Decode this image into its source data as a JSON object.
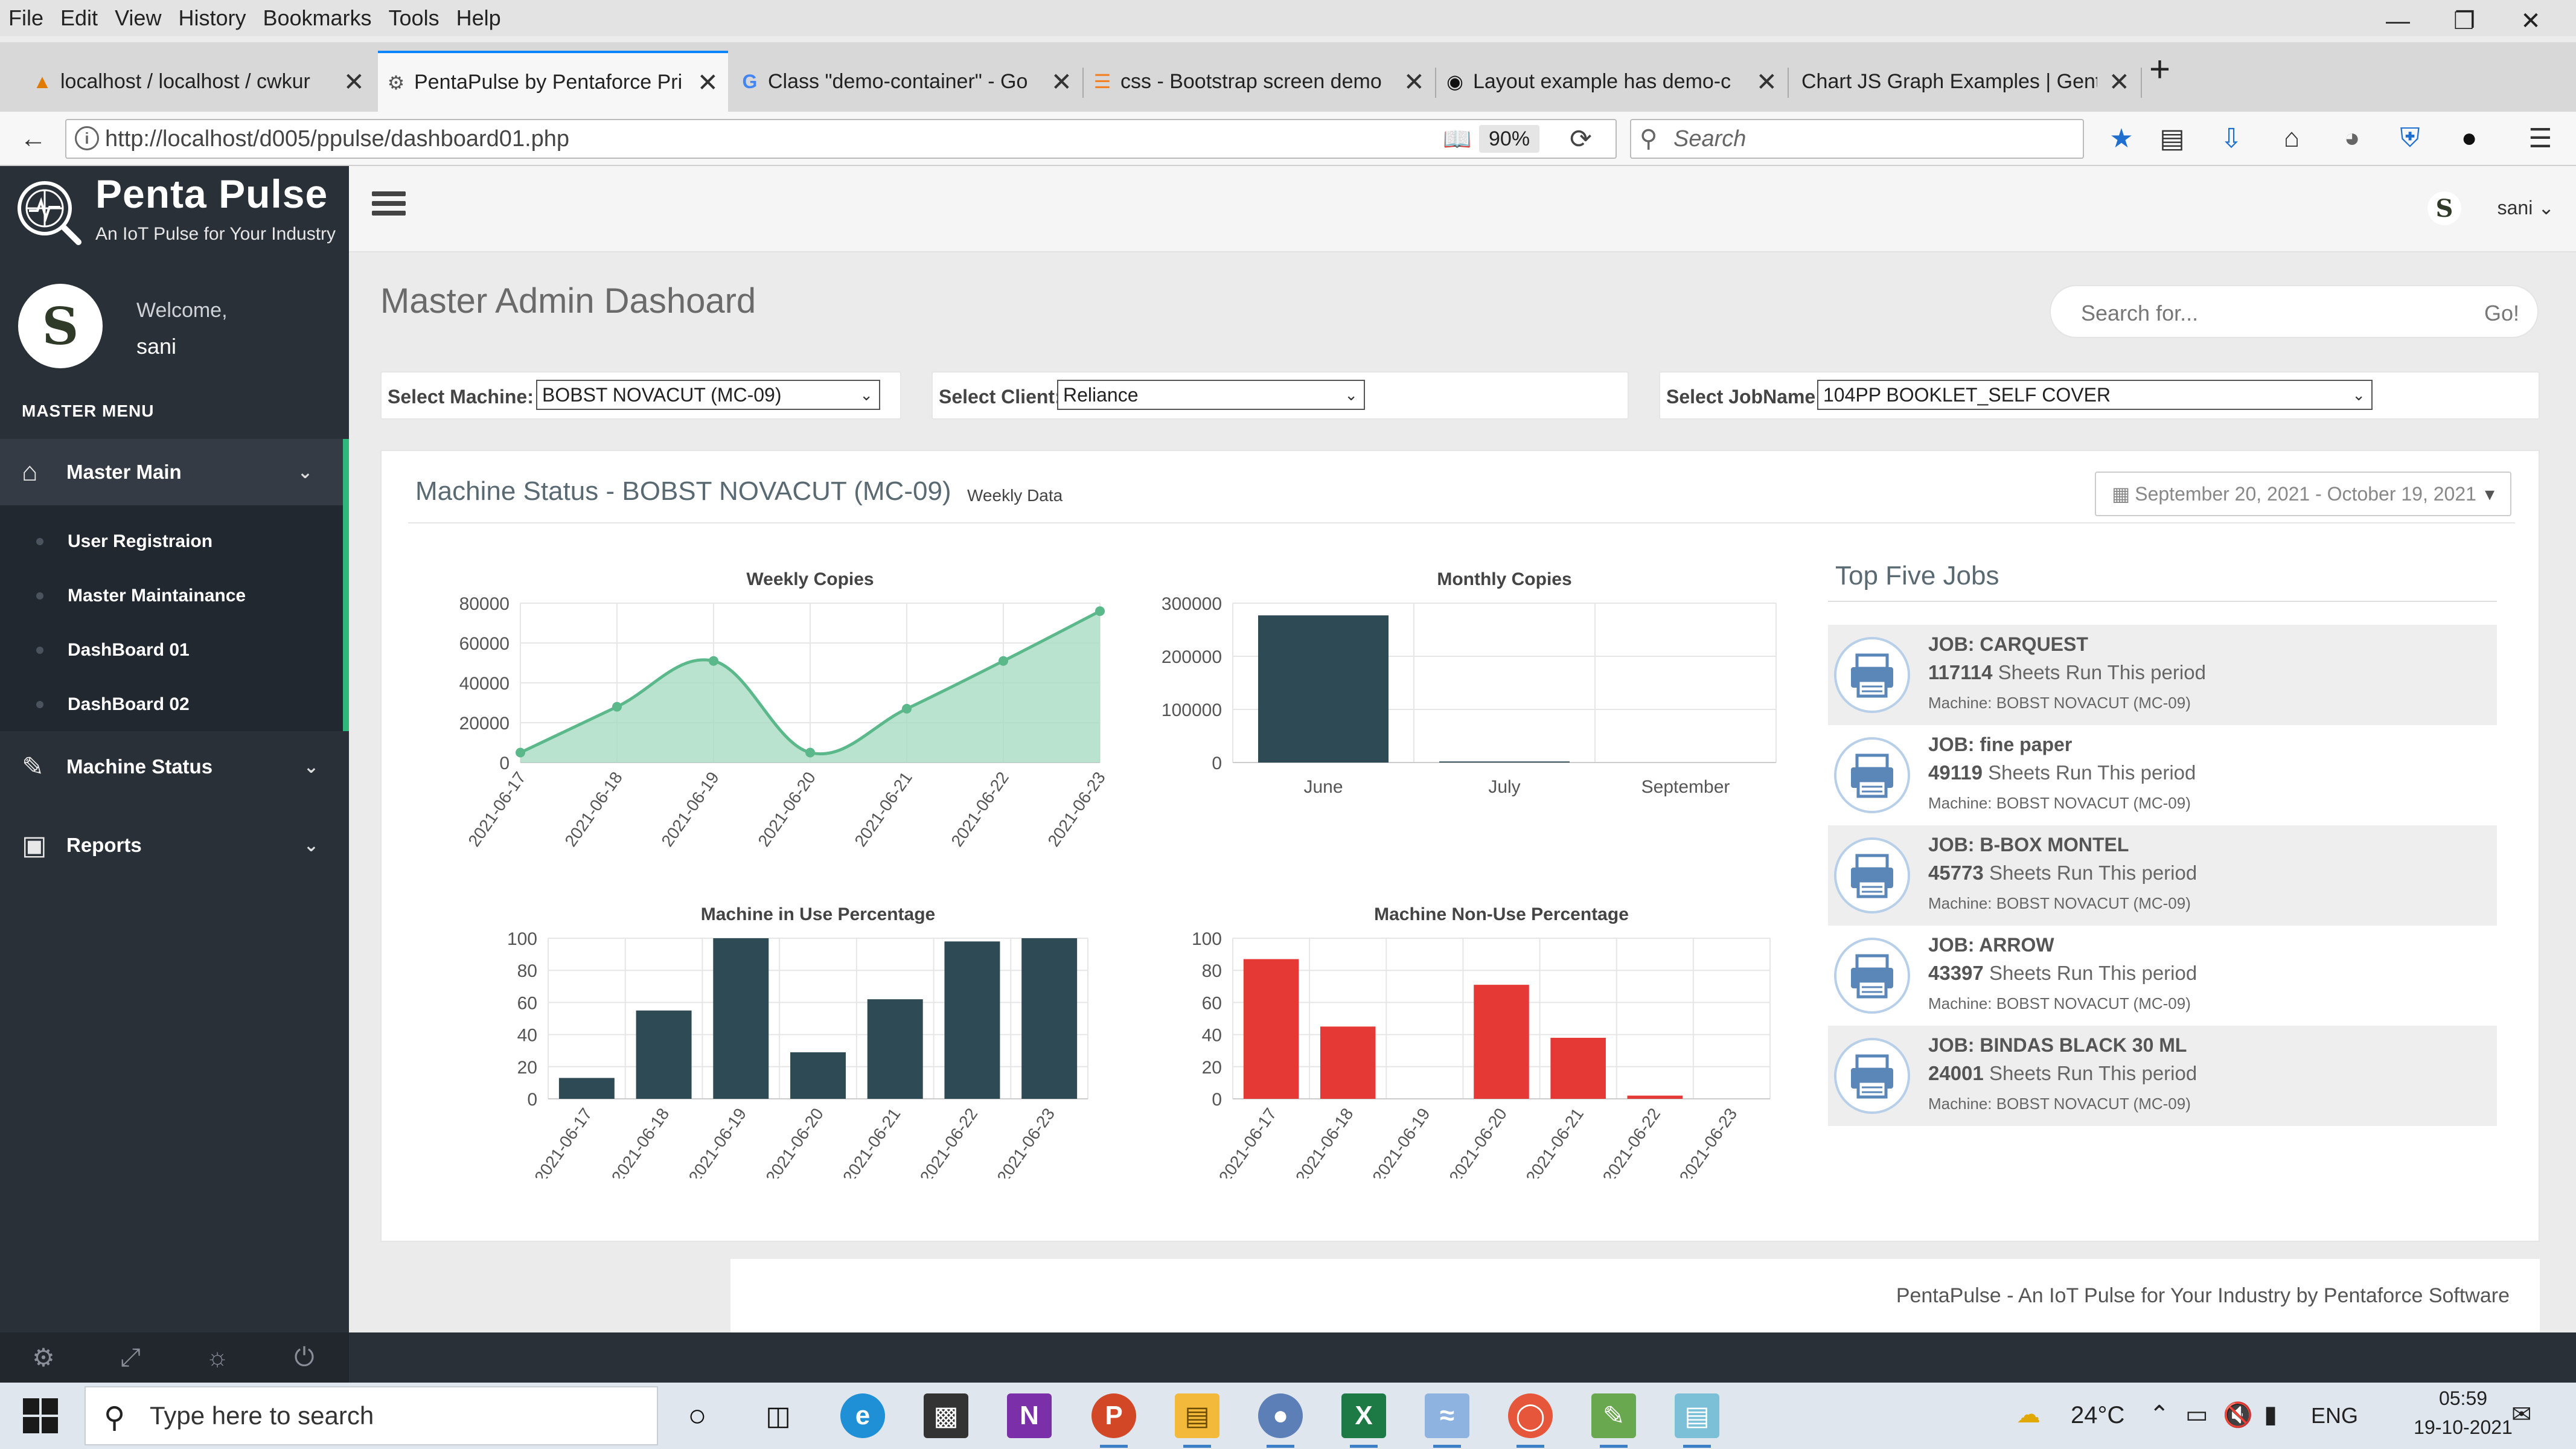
{
  "browser": {
    "menu": [
      "File",
      "Edit",
      "View",
      "History",
      "Bookmarks",
      "Tools",
      "Help"
    ],
    "tabs": [
      {
        "title": "localhost / localhost / cwkur",
        "icon": "phpmyadmin-icon"
      },
      {
        "title": "PentaPulse by Pentaforce Pri",
        "icon": "pentapulse-icon"
      },
      {
        "title": "Class \"demo-container\" - Go",
        "icon": "google-icon"
      },
      {
        "title": "css - Bootstrap screen demo",
        "icon": "stackoverflow-icon"
      },
      {
        "title": "Layout example has demo-c",
        "icon": "github-icon"
      },
      {
        "title": "Chart JS Graph Examples | Gente",
        "icon": "blank-icon"
      }
    ],
    "url": "http://localhost/d005/ppulse/dashboard01.php",
    "zoom": "90%",
    "search_placeholder": "Search"
  },
  "app": {
    "brand": {
      "title": "Penta Pulse",
      "tagline": "An IoT Pulse for Your Industry"
    },
    "user": {
      "welcome": "Welcome,",
      "name": "sani",
      "avatar_letter": "S"
    },
    "menu_heading": "MASTER MENU",
    "nav": {
      "master_main": "Master Main",
      "sub_items": [
        "User Registraion",
        "Master Maintainance",
        "DashBoard 01",
        "DashBoard 02"
      ],
      "machine_status": "Machine Status",
      "reports": "Reports"
    },
    "topbar": {
      "user_name": "sani"
    },
    "page_title": "Master Admin Dashoard",
    "site_search": {
      "placeholder": "Search for...",
      "button": "Go!"
    },
    "filters": {
      "machine": {
        "label": "Select Machine:",
        "value": "BOBST NOVACUT (MC-09)"
      },
      "client": {
        "label": "Select Client:",
        "value": "Reliance"
      },
      "job": {
        "label": "Select JobName:",
        "value": "104PP BOOKLET_SELF COVER"
      }
    },
    "panel": {
      "title": "Machine Status - BOBST NOVACUT (MC-09)",
      "subtitle": "Weekly Data",
      "date_range": "September 20, 2021 - October 19, 2021"
    },
    "top_jobs": {
      "title": "Top Five Jobs",
      "suffix": "Sheets Run This period",
      "items": [
        {
          "job": "JOB: CARQUEST",
          "sheets": "117114",
          "machine": "Machine: BOBST NOVACUT (MC-09)"
        },
        {
          "job": "JOB: fine paper",
          "sheets": "49119",
          "machine": "Machine: BOBST NOVACUT (MC-09)"
        },
        {
          "job": "JOB: B-BOX MONTEL",
          "sheets": "45773",
          "machine": "Machine: BOBST NOVACUT (MC-09)"
        },
        {
          "job": "JOB: ARROW",
          "sheets": "43397",
          "machine": "Machine: BOBST NOVACUT (MC-09)"
        },
        {
          "job": "JOB: BINDAS BLACK 30 ML",
          "sheets": "24001",
          "machine": "Machine: BOBST NOVACUT (MC-09)"
        }
      ]
    },
    "footer": "PentaPulse - An IoT Pulse for Your Industry by Pentaforce Software"
  },
  "taskbar": {
    "search_placeholder": "Type here to search",
    "temperature": "24°C",
    "language": "ENG",
    "time": "05:59",
    "date": "19-10-2021"
  },
  "colors": {
    "sidebar": "#2a3038",
    "accent_green": "#2eb87c",
    "line_fill": "#a8dcc2",
    "line_stroke": "#5ab88b",
    "bar_dark": "#2e4a54",
    "bar_red": "#e53935"
  },
  "chart_data": [
    {
      "type": "area",
      "title": "Weekly Copies",
      "categories": [
        "2021-06-17",
        "2021-06-18",
        "2021-06-19",
        "2021-06-20",
        "2021-06-21",
        "2021-06-22",
        "2021-06-23"
      ],
      "values": [
        5000,
        28000,
        51000,
        5000,
        27000,
        51000,
        76000
      ],
      "ylim": [
        0,
        80000
      ],
      "yticks": [
        0,
        20000,
        40000,
        60000,
        80000
      ],
      "grid": true
    },
    {
      "type": "bar",
      "title": "Monthly Copies",
      "categories": [
        "June",
        "July",
        "September"
      ],
      "values": [
        277000,
        2000,
        0
      ],
      "ylim": [
        0,
        300000
      ],
      "yticks": [
        0,
        100000,
        200000,
        300000
      ],
      "grid": true
    },
    {
      "type": "bar",
      "title": "Machine in Use Percentage",
      "categories": [
        "2021-06-17",
        "2021-06-18",
        "2021-06-19",
        "2021-06-20",
        "2021-06-21",
        "2021-06-22",
        "2021-06-23"
      ],
      "values": [
        13,
        55,
        100,
        29,
        62,
        98,
        100
      ],
      "ylim": [
        0,
        100
      ],
      "yticks": [
        0,
        20,
        40,
        60,
        80,
        100
      ],
      "grid": true
    },
    {
      "type": "bar",
      "title": "Machine Non-Use Percentage",
      "categories": [
        "2021-06-17",
        "2021-06-18",
        "2021-06-19",
        "2021-06-20",
        "2021-06-21",
        "2021-06-22",
        "2021-06-23"
      ],
      "values": [
        87,
        45,
        0,
        71,
        38,
        2,
        0
      ],
      "ylim": [
        0,
        100
      ],
      "yticks": [
        0,
        20,
        40,
        60,
        80,
        100
      ],
      "grid": true
    }
  ]
}
